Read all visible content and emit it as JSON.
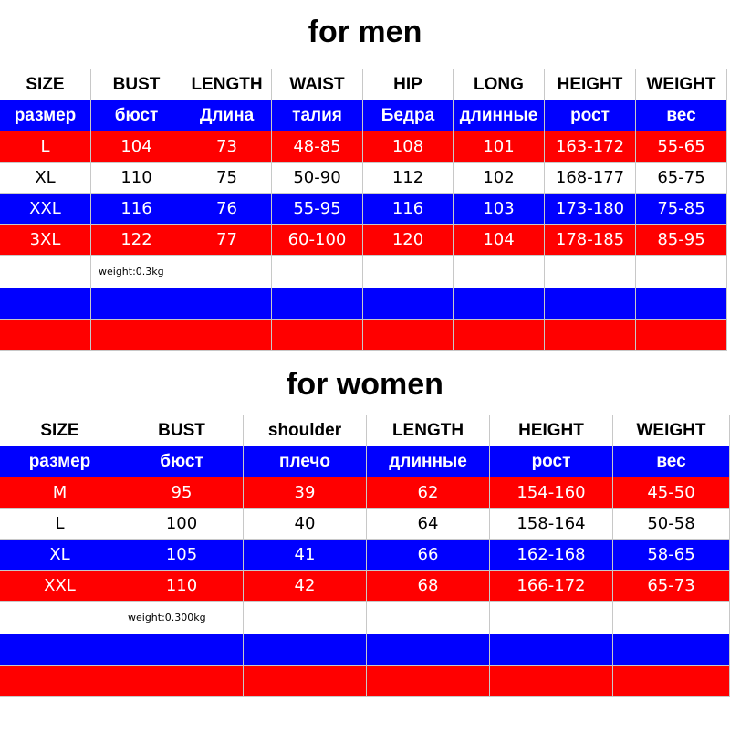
{
  "men": {
    "title": "for men",
    "header": [
      "SIZE",
      "BUST",
      "LENGTH",
      "WAIST",
      "HIP",
      "LONG",
      "HEIGHT",
      "WEIGHT"
    ],
    "header_ru": [
      "размер",
      "бюст",
      "Длина",
      "талия",
      "Бедра",
      "длинные",
      "рост",
      "вес"
    ],
    "rows": [
      [
        "L",
        "104",
        "73",
        "48-85",
        "108",
        "101",
        "163-172",
        "55-65"
      ],
      [
        "XL",
        "110",
        "75",
        "50-90",
        "112",
        "102",
        "168-177",
        "65-75"
      ],
      [
        "XXL",
        "116",
        "76",
        "55-95",
        "116",
        "103",
        "173-180",
        "75-85"
      ],
      [
        "3XL",
        "122",
        "77",
        "60-100",
        "120",
        "104",
        "178-185",
        "85-95"
      ]
    ],
    "note": "weight:0.3kg"
  },
  "women": {
    "title": "for women",
    "header": [
      "SIZE",
      "BUST",
      "shoulder",
      "LENGTH",
      "HEIGHT",
      "WEIGHT"
    ],
    "header_ru": [
      "размер",
      "бюст",
      "плечо",
      "длинные",
      "рост",
      "вес"
    ],
    "rows": [
      [
        "M",
        "95",
        "39",
        "62",
        "154-160",
        "45-50"
      ],
      [
        "L",
        "100",
        "40",
        "64",
        "158-164",
        "50-58"
      ],
      [
        "XL",
        "105",
        "41",
        "66",
        "162-168",
        "58-65"
      ],
      [
        "XXL",
        "110",
        "42",
        "68",
        "166-172",
        "65-73"
      ]
    ],
    "note": "weight:0.300kg"
  }
}
